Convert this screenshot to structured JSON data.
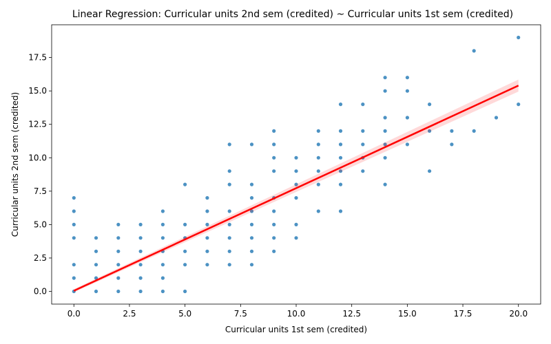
{
  "chart_data": {
    "type": "scatter",
    "title": "Linear Regression: Curricular units 2nd sem (credited) ~ Curricular units 1st sem (credited)",
    "xlabel": "Curricular units 1st sem (credited)",
    "ylabel": "Curricular units 2nd sem (credited)",
    "xlim": [
      -1,
      21
    ],
    "ylim": [
      -0.95,
      19.95
    ],
    "x_ticks": [
      0.0,
      2.5,
      5.0,
      7.5,
      10.0,
      12.5,
      15.0,
      17.5,
      20.0
    ],
    "x_tick_labels": [
      "0.0",
      "2.5",
      "5.0",
      "7.5",
      "10.0",
      "12.5",
      "15.0",
      "17.5",
      "20.0"
    ],
    "y_ticks": [
      0.0,
      2.5,
      5.0,
      7.5,
      10.0,
      12.5,
      15.0,
      17.5
    ],
    "y_tick_labels": [
      "0.0",
      "2.5",
      "5.0",
      "7.5",
      "10.0",
      "12.5",
      "15.0",
      "17.5"
    ],
    "grid": false,
    "series": [
      {
        "kind": "scatter",
        "color": "#1f77b4",
        "points": [
          [
            0,
            0
          ],
          [
            0,
            1
          ],
          [
            0,
            2
          ],
          [
            0,
            4
          ],
          [
            0,
            5
          ],
          [
            0,
            6
          ],
          [
            0,
            7
          ],
          [
            1,
            0
          ],
          [
            1,
            1
          ],
          [
            1,
            2
          ],
          [
            1,
            3
          ],
          [
            1,
            4
          ],
          [
            2,
            0
          ],
          [
            2,
            1
          ],
          [
            2,
            2
          ],
          [
            2,
            3
          ],
          [
            2,
            4
          ],
          [
            2,
            5
          ],
          [
            3,
            0
          ],
          [
            3,
            1
          ],
          [
            3,
            2
          ],
          [
            3,
            3
          ],
          [
            3,
            4
          ],
          [
            3,
            5
          ],
          [
            4,
            0
          ],
          [
            4,
            1
          ],
          [
            4,
            2
          ],
          [
            4,
            3
          ],
          [
            4,
            4
          ],
          [
            4,
            5
          ],
          [
            4,
            6
          ],
          [
            5,
            0
          ],
          [
            5,
            2
          ],
          [
            5,
            3
          ],
          [
            5,
            4
          ],
          [
            5,
            5
          ],
          [
            5,
            8
          ],
          [
            6,
            2
          ],
          [
            6,
            3
          ],
          [
            6,
            4
          ],
          [
            6,
            5
          ],
          [
            6,
            6
          ],
          [
            6,
            7
          ],
          [
            7,
            2
          ],
          [
            7,
            3
          ],
          [
            7,
            4
          ],
          [
            7,
            5
          ],
          [
            7,
            6
          ],
          [
            7,
            8
          ],
          [
            7,
            9
          ],
          [
            7,
            11
          ],
          [
            8,
            2
          ],
          [
            8,
            3
          ],
          [
            8,
            4
          ],
          [
            8,
            5
          ],
          [
            8,
            6
          ],
          [
            8,
            7
          ],
          [
            8,
            8
          ],
          [
            8,
            11
          ],
          [
            9,
            3
          ],
          [
            9,
            4
          ],
          [
            9,
            5
          ],
          [
            9,
            6
          ],
          [
            9,
            7
          ],
          [
            9,
            9
          ],
          [
            9,
            10
          ],
          [
            9,
            11
          ],
          [
            9,
            12
          ],
          [
            10,
            4
          ],
          [
            10,
            5
          ],
          [
            10,
            7
          ],
          [
            10,
            8
          ],
          [
            10,
            9
          ],
          [
            10,
            10
          ],
          [
            11,
            6
          ],
          [
            11,
            8
          ],
          [
            11,
            9
          ],
          [
            11,
            10
          ],
          [
            11,
            11
          ],
          [
            11,
            12
          ],
          [
            12,
            6
          ],
          [
            12,
            8
          ],
          [
            12,
            9
          ],
          [
            12,
            10
          ],
          [
            12,
            11
          ],
          [
            12,
            12
          ],
          [
            12,
            14
          ],
          [
            13,
            9
          ],
          [
            13,
            10
          ],
          [
            13,
            11
          ],
          [
            13,
            12
          ],
          [
            13,
            14
          ],
          [
            14,
            8
          ],
          [
            14,
            10
          ],
          [
            14,
            11
          ],
          [
            14,
            12
          ],
          [
            14,
            13
          ],
          [
            14,
            15
          ],
          [
            14,
            16
          ],
          [
            15,
            11
          ],
          [
            15,
            13
          ],
          [
            15,
            15
          ],
          [
            15,
            16
          ],
          [
            16,
            9
          ],
          [
            16,
            12
          ],
          [
            16,
            14
          ],
          [
            17,
            11
          ],
          [
            17,
            12
          ],
          [
            18,
            12
          ],
          [
            18,
            18
          ],
          [
            19,
            13
          ],
          [
            20,
            14
          ],
          [
            20,
            19
          ]
        ]
      },
      {
        "kind": "regression-line",
        "color": "#ff0000",
        "x": [
          0,
          20
        ],
        "y": [
          0.05,
          15.4
        ],
        "ci_halfwidth": [
          0.12,
          0.45
        ]
      }
    ]
  }
}
